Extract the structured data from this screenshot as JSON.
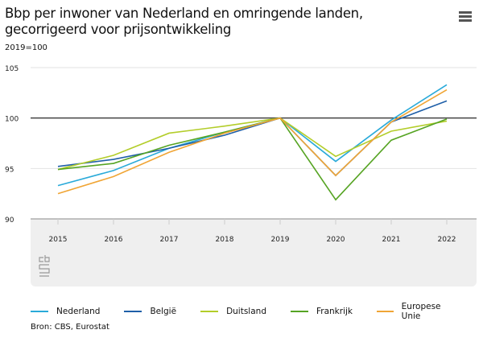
{
  "header": {
    "title_line1": "Bbp per inwoner van Nederland en omringende landen,",
    "title_line2": "gecorrigeerd voor prijsontwikkeling",
    "menu_icon": "hamburger-menu-icon"
  },
  "subtitle": "2019=100",
  "source": "Bron: CBS, Eurostat",
  "logo": "cbs",
  "chart_data": {
    "type": "line",
    "title": "Bbp per inwoner van Nederland en omringende landen, gecorrigeerd voor prijsontwikkeling",
    "subtitle": "2019=100",
    "x": [
      "2015",
      "2016",
      "2017",
      "2018",
      "2019",
      "2020",
      "2021",
      "2022"
    ],
    "ylim": [
      90,
      105
    ],
    "yticks": [
      90,
      95,
      100,
      105
    ],
    "reference_line": 100,
    "grid": true,
    "legend": "bottom",
    "series": [
      {
        "name": "Nederland",
        "color": "#2aaad9",
        "values": [
          93.3,
          94.8,
          97.0,
          98.6,
          100,
          95.7,
          99.8,
          103.3
        ]
      },
      {
        "name": "België",
        "color": "#1f5fa8",
        "values": [
          95.2,
          95.9,
          97.0,
          98.3,
          100,
          94.3,
          99.6,
          101.7
        ]
      },
      {
        "name": "Duitsland",
        "color": "#b3cd2a",
        "values": [
          94.9,
          96.3,
          98.5,
          99.2,
          100,
          96.2,
          98.7,
          99.7
        ]
      },
      {
        "name": "Frankrijk",
        "color": "#56a423",
        "values": [
          94.9,
          95.5,
          97.3,
          98.6,
          100,
          91.9,
          97.8,
          99.9
        ]
      },
      {
        "name": "Europese Unie",
        "color": "#f0a535",
        "values": [
          92.5,
          94.2,
          96.6,
          98.5,
          100,
          94.3,
          99.6,
          102.8
        ]
      }
    ]
  }
}
